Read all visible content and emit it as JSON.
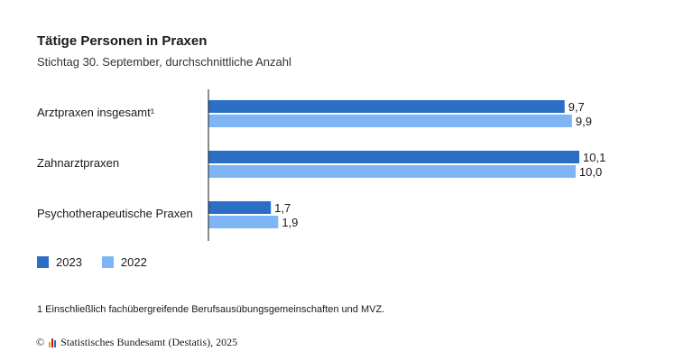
{
  "header": {
    "title": "Tätige Personen in Praxen",
    "subtitle": "Stichtag 30. September, durchschnittliche Anzahl"
  },
  "colors": {
    "series_2023": "#2a6ec6",
    "series_2022": "#7eb6f5",
    "axis": "#1a1a1a"
  },
  "chart_data": {
    "type": "bar",
    "orientation": "horizontal",
    "categories": [
      "Arztpraxen insgesamt¹",
      "Zahnarztpraxen",
      "Psychotherapeutische Praxen"
    ],
    "series": [
      {
        "name": "2023",
        "values": [
          9.7,
          10.1,
          1.7
        ],
        "labels": [
          "9,7",
          "10,1",
          "1,7"
        ]
      },
      {
        "name": "2022",
        "values": [
          9.9,
          10.0,
          1.9
        ],
        "labels": [
          "9,9",
          "10,0",
          "1,9"
        ]
      }
    ],
    "xlim": [
      0,
      10.1
    ],
    "grid": false,
    "legend": "bottom-left"
  },
  "footnote": "1 Einschließlich fachübergreifende Berufsausübungsgemeinschaften und MVZ.",
  "source": {
    "copyright": "©",
    "logo_icon": "destatis-logo-icon",
    "text": "Statistisches Bundesamt (Destatis), 2025"
  }
}
